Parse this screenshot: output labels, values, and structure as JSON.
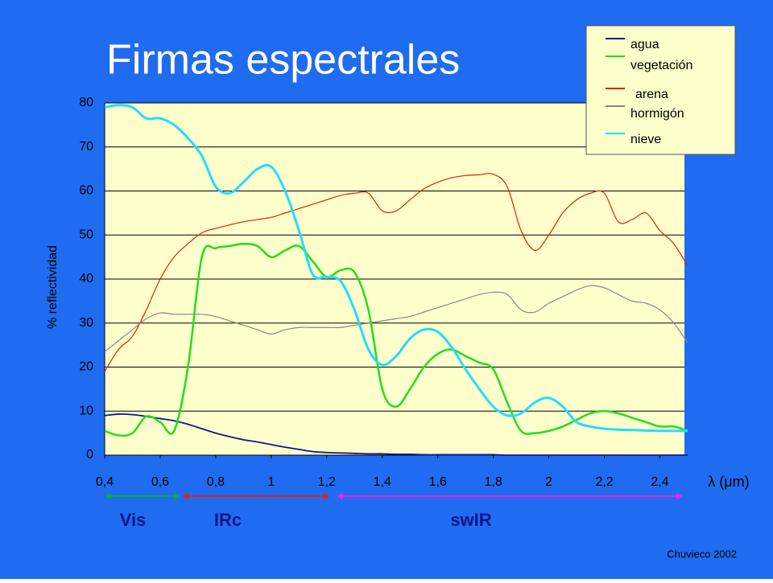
{
  "chart_data": {
    "type": "line",
    "title": "Firmas espectrales",
    "y_label": "% reflectividad",
    "x_label": "λ (μm)",
    "credit": "Chuvieco 2002",
    "band_labels": [
      "Vis",
      "IRc",
      "swIR"
    ],
    "legend": "top-right",
    "grid": true,
    "xlim": [
      0.4,
      2.5
    ],
    "ylim": [
      0,
      80
    ],
    "xticks": [
      {
        "value": 0.4,
        "label": "0,4"
      },
      {
        "value": 0.6,
        "label": "0,6"
      },
      {
        "value": 0.8,
        "label": "0,8"
      },
      1,
      {
        "value": 1.2,
        "label": "1,2"
      },
      {
        "value": 1.4,
        "label": "1,4"
      },
      {
        "value": 1.6,
        "label": "1,6"
      },
      {
        "value": 1.8,
        "label": "1,8"
      },
      2,
      {
        "value": 2.2,
        "label": "2,2"
      },
      {
        "value": 2.4,
        "label": "2,4"
      }
    ],
    "yticks": [
      0,
      10,
      20,
      30,
      40,
      50,
      60,
      70,
      80
    ],
    "x": [
      0.4,
      0.45,
      0.5,
      0.55,
      0.6,
      0.65,
      0.7,
      0.75,
      0.8,
      0.85,
      0.9,
      0.95,
      1.0,
      1.05,
      1.1,
      1.15,
      1.2,
      1.25,
      1.3,
      1.35,
      1.4,
      1.45,
      1.5,
      1.55,
      1.6,
      1.65,
      1.7,
      1.75,
      1.8,
      1.85,
      1.9,
      1.95,
      2.0,
      2.05,
      2.1,
      2.15,
      2.2,
      2.25,
      2.3,
      2.35,
      2.4,
      2.45,
      2.5
    ],
    "series": [
      {
        "name": "agua",
        "color": "#0a1a8a",
        "values": [
          9,
          9.3,
          9.2,
          8.8,
          8.3,
          7.8,
          7,
          6,
          5,
          4.2,
          3.5,
          3,
          2.4,
          1.8,
          1.3,
          0.8,
          0.6,
          0.5,
          0.4,
          0.3,
          0.3,
          0.2,
          0.2,
          0.1,
          0.1,
          0.1,
          0.1,
          0.1,
          0.1,
          0,
          0,
          0,
          0,
          0,
          0,
          0,
          0,
          0,
          0,
          0,
          0,
          0,
          0
        ]
      },
      {
        "name": "vegetación",
        "color": "#22dd22",
        "values": [
          5.5,
          4.5,
          5,
          8.8,
          7.5,
          5.5,
          20,
          45,
          47,
          47.5,
          48,
          47.5,
          45,
          46.5,
          47.5,
          44,
          40.5,
          42,
          41.5,
          33,
          15,
          11,
          15,
          20,
          23,
          24,
          22.5,
          21,
          19.5,
          12,
          5.5,
          5,
          5.5,
          6.5,
          8,
          9.5,
          10,
          9.5,
          8.5,
          7.5,
          6.5,
          6.5,
          5.5
        ]
      },
      {
        "name": "arena",
        "color": "#dd2200",
        "values": [
          19,
          24,
          27,
          33,
          40,
          45,
          48,
          50.5,
          51.5,
          52.3,
          53,
          53.5,
          54,
          55,
          56,
          57,
          58,
          59,
          59.5,
          59.5,
          55.5,
          55.5,
          58,
          60.5,
          62,
          63,
          63.5,
          63.7,
          63.8,
          61,
          51,
          46.5,
          50,
          55,
          58,
          59.5,
          59.5,
          53,
          53.5,
          55,
          51,
          48,
          43
        ]
      },
      {
        "name": "hormigón",
        "color": "#888888",
        "values": [
          23.5,
          26,
          28.5,
          31,
          32.3,
          32,
          32,
          32,
          31.5,
          30.5,
          29.5,
          28.5,
          27.5,
          28.5,
          29,
          29,
          29,
          29,
          29.5,
          30,
          30.5,
          31,
          31.5,
          32.5,
          33.5,
          34.5,
          35.5,
          36.5,
          37,
          36.5,
          33,
          32.5,
          34.5,
          36,
          37.5,
          38.5,
          38,
          36.5,
          35,
          34.5,
          33,
          30,
          25.5
        ]
      },
      {
        "name": "nieve",
        "color": "#22ddff",
        "values": [
          79,
          79.5,
          79,
          76.5,
          76.5,
          75,
          72,
          68,
          61,
          59.5,
          62,
          65,
          65.5,
          60,
          51,
          41,
          40.5,
          39.5,
          33,
          24,
          20.5,
          22.5,
          26.5,
          28.5,
          28,
          24.5,
          19.5,
          15,
          11,
          9,
          9.5,
          12,
          13,
          11,
          7.5,
          6.5,
          6,
          5.8,
          5.7,
          5.6,
          5.5,
          5.5,
          5.5
        ]
      }
    ]
  }
}
